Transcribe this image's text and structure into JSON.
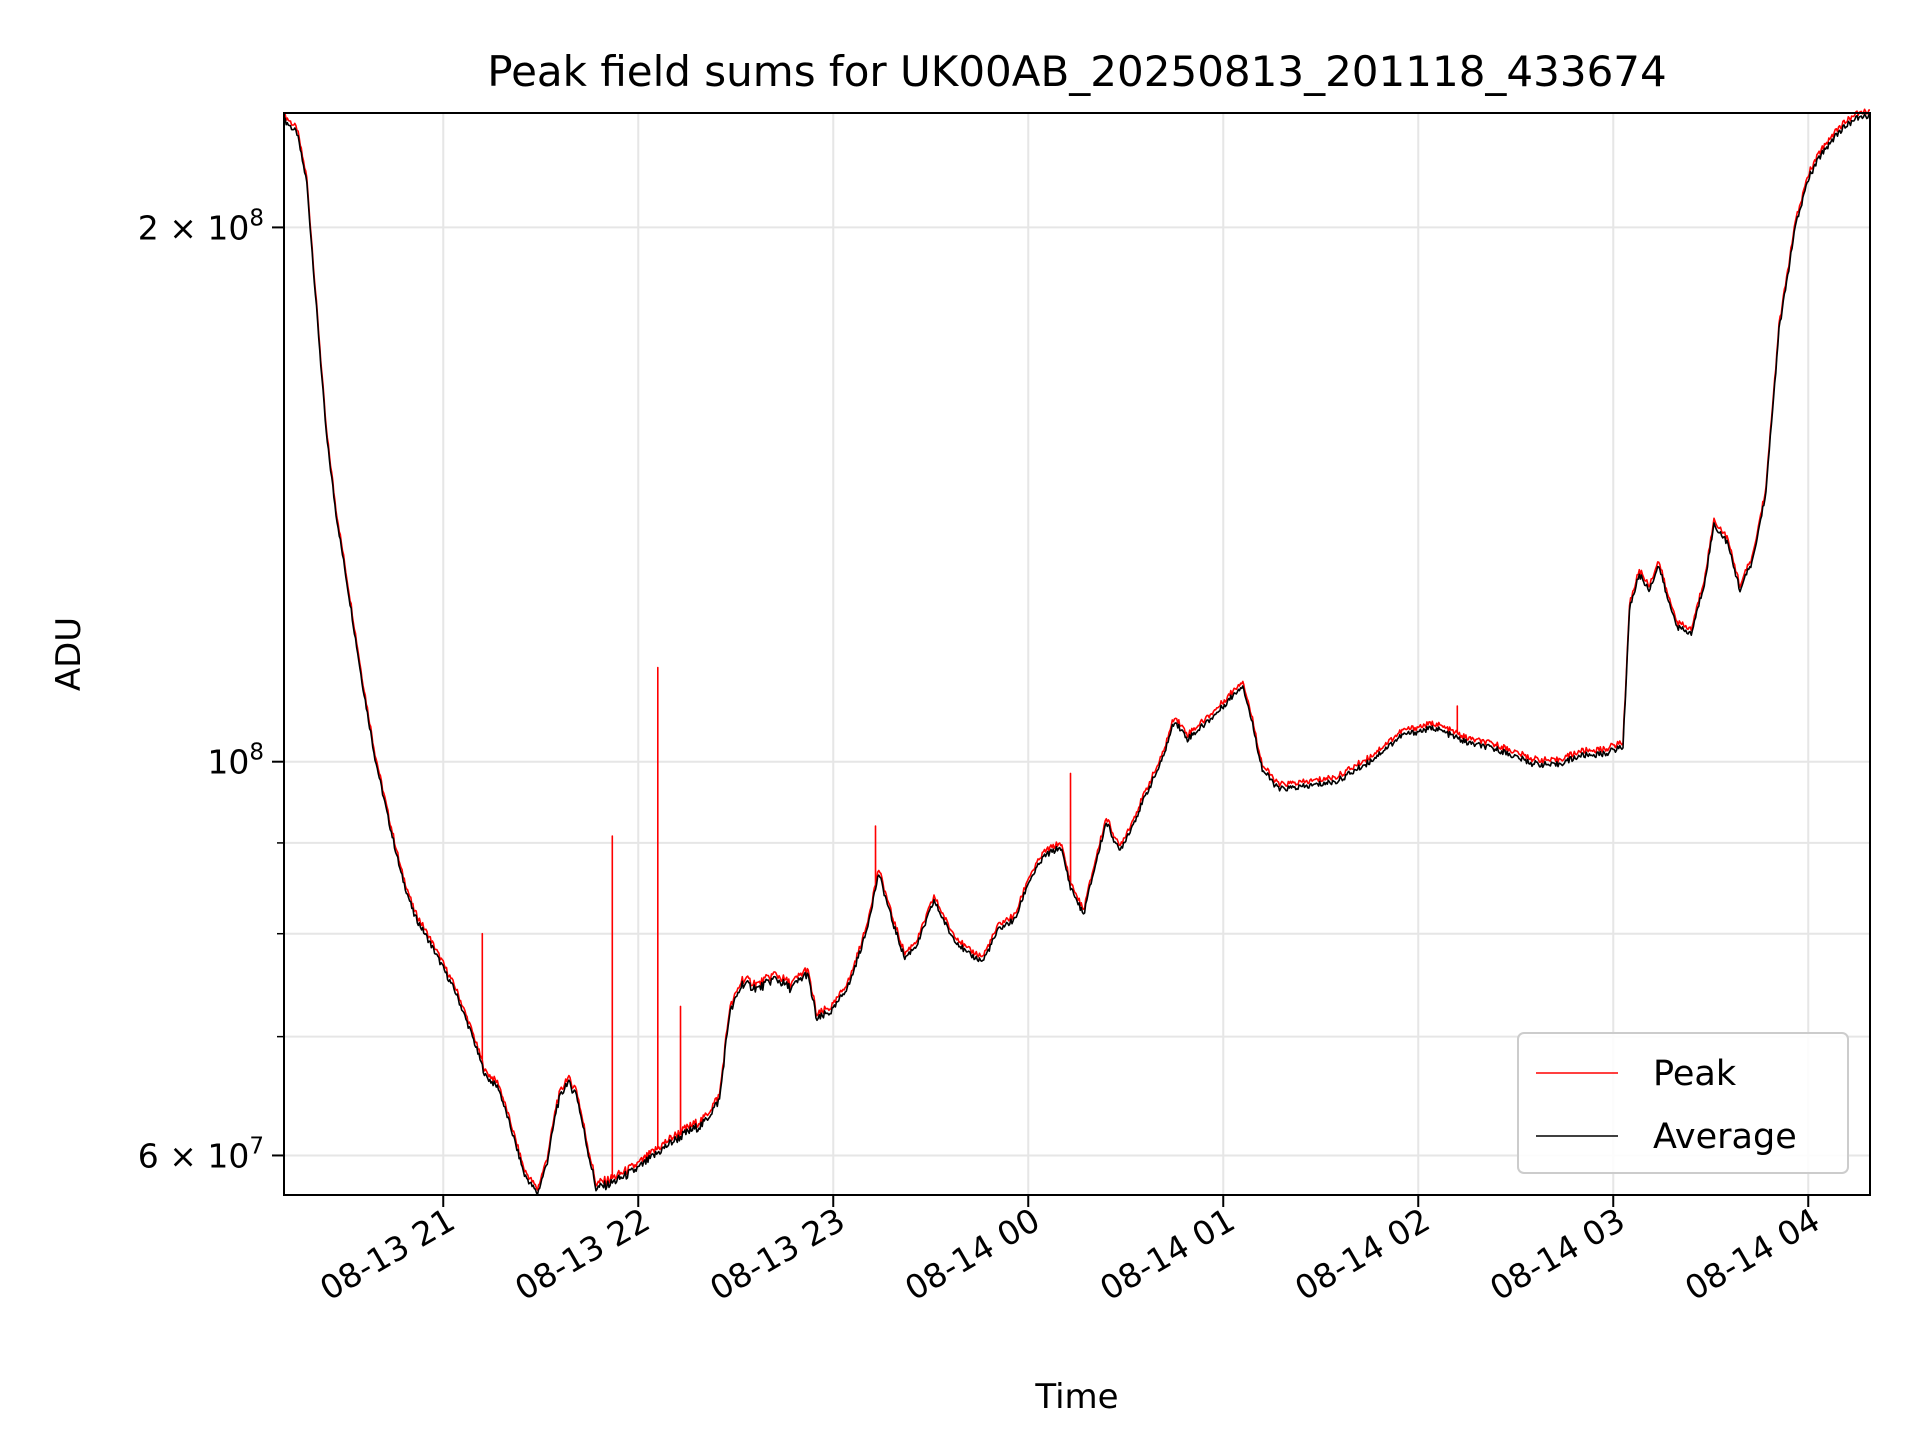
{
  "chart_data": {
    "type": "line",
    "title": "Peak field sums for UK00AB_20250813_201118_433674",
    "xlabel": "Time",
    "ylabel": "ADU",
    "y_scale": "log",
    "ylim": [
      57000000,
      232000000
    ],
    "xlim": [
      "2025-08-13 20:11",
      "2025-08-14 04:19"
    ],
    "x_ticks": [
      "2025-08-13 21:00",
      "2025-08-13 22:00",
      "2025-08-13 23:00",
      "2025-08-14 00:00",
      "2025-08-14 01:00",
      "2025-08-14 02:00",
      "2025-08-14 03:00",
      "2025-08-14 04:00"
    ],
    "x_tick_labels": [
      "08-13 21",
      "08-13 22",
      "08-13 23",
      "08-14 00",
      "08-14 01",
      "08-14 02",
      "08-14 03",
      "08-14 04"
    ],
    "y_major_ticks": [
      {
        "value": 200000000,
        "mantissa": "2",
        "exp": "8"
      },
      {
        "value": 100000000,
        "mantissa": "",
        "exp": "8"
      },
      {
        "value": 60000000,
        "mantissa": "6",
        "exp": "7"
      }
    ],
    "y_minor_ticks": [
      70000000,
      80000000,
      90000000
    ],
    "grid": true,
    "legend": {
      "position": "lower right",
      "entries": [
        "Peak",
        "Average"
      ]
    },
    "colors": {
      "Peak": "#ff0000",
      "Average": "#000000"
    },
    "series": [
      {
        "name": "Average",
        "points": [
          [
            "2025-08-13 20:11",
            230000000
          ],
          [
            "2025-08-13 20:15",
            226000000
          ],
          [
            "2025-08-13 20:18",
            212000000
          ],
          [
            "2025-08-13 20:21",
            180000000
          ],
          [
            "2025-08-13 20:24",
            153000000
          ],
          [
            "2025-08-13 20:27",
            138000000
          ],
          [
            "2025-08-13 20:31",
            124000000
          ],
          [
            "2025-08-13 20:35",
            111000000
          ],
          [
            "2025-08-13 20:39",
            100500000
          ],
          [
            "2025-08-13 20:43",
            93000000
          ],
          [
            "2025-08-13 20:47",
            86500000
          ],
          [
            "2025-08-13 20:51",
            82000000
          ],
          [
            "2025-08-13 20:56",
            79000000
          ],
          [
            "2025-08-13 21:00",
            76500000
          ],
          [
            "2025-08-13 21:04",
            74000000
          ],
          [
            "2025-08-13 21:09",
            70000000
          ],
          [
            "2025-08-13 21:13",
            66500000
          ],
          [
            "2025-08-13 21:17",
            65500000
          ],
          [
            "2025-08-13 21:21",
            62000000
          ],
          [
            "2025-08-13 21:25",
            58500000
          ],
          [
            "2025-08-13 21:29",
            57100000
          ],
          [
            "2025-08-13 21:32",
            59500000
          ],
          [
            "2025-08-13 21:35",
            64000000
          ],
          [
            "2025-08-13 21:38",
            66000000
          ],
          [
            "2025-08-13 21:41",
            65000000
          ],
          [
            "2025-08-13 21:44",
            61000000
          ],
          [
            "2025-08-13 21:47",
            57500000
          ],
          [
            "2025-08-13 21:51",
            57800000
          ],
          [
            "2025-08-13 21:55",
            58300000
          ],
          [
            "2025-08-13 22:00",
            59000000
          ],
          [
            "2025-08-13 22:05",
            60000000
          ],
          [
            "2025-08-13 22:10",
            61000000
          ],
          [
            "2025-08-13 22:15",
            61800000
          ],
          [
            "2025-08-13 22:20",
            62500000
          ],
          [
            "2025-08-13 22:25",
            64500000
          ],
          [
            "2025-08-13 22:28",
            72000000
          ],
          [
            "2025-08-13 22:32",
            75000000
          ],
          [
            "2025-08-13 22:37",
            74500000
          ],
          [
            "2025-08-13 22:42",
            75500000
          ],
          [
            "2025-08-13 22:47",
            74500000
          ],
          [
            "2025-08-13 22:52",
            76000000
          ],
          [
            "2025-08-13 22:55",
            71500000
          ],
          [
            "2025-08-13 23:00",
            72500000
          ],
          [
            "2025-08-13 23:05",
            75000000
          ],
          [
            "2025-08-13 23:10",
            80000000
          ],
          [
            "2025-08-13 23:14",
            86500000
          ],
          [
            "2025-08-13 23:18",
            81500000
          ],
          [
            "2025-08-13 23:22",
            77500000
          ],
          [
            "2025-08-13 23:26",
            79000000
          ],
          [
            "2025-08-13 23:31",
            83500000
          ],
          [
            "2025-08-13 23:36",
            80000000
          ],
          [
            "2025-08-13 23:41",
            78000000
          ],
          [
            "2025-08-13 23:46",
            77200000
          ],
          [
            "2025-08-13 23:51",
            80500000
          ],
          [
            "2025-08-13 23:56",
            81500000
          ],
          [
            "2025-08-14 00:00",
            85500000
          ],
          [
            "2025-08-14 00:05",
            88500000
          ],
          [
            "2025-08-14 00:10",
            89500000
          ],
          [
            "2025-08-14 00:13",
            85000000
          ],
          [
            "2025-08-14 00:17",
            82000000
          ],
          [
            "2025-08-14 00:20",
            86500000
          ],
          [
            "2025-08-14 00:24",
            92500000
          ],
          [
            "2025-08-14 00:28",
            89000000
          ],
          [
            "2025-08-14 00:32",
            92000000
          ],
          [
            "2025-08-14 00:37",
            96500000
          ],
          [
            "2025-08-14 00:41",
            100000000
          ],
          [
            "2025-08-14 00:45",
            105500000
          ],
          [
            "2025-08-14 00:49",
            103000000
          ],
          [
            "2025-08-14 00:53",
            104500000
          ],
          [
            "2025-08-14 00:58",
            106500000
          ],
          [
            "2025-08-14 01:02",
            108500000
          ],
          [
            "2025-08-14 01:06",
            110500000
          ],
          [
            "2025-08-14 01:09",
            105000000
          ],
          [
            "2025-08-14 01:12",
            99000000
          ],
          [
            "2025-08-14 01:17",
            96500000
          ],
          [
            "2025-08-14 01:25",
            96800000
          ],
          [
            "2025-08-14 01:35",
            97500000
          ],
          [
            "2025-08-14 01:45",
            100000000
          ],
          [
            "2025-08-14 01:55",
            103500000
          ],
          [
            "2025-08-14 02:05",
            104500000
          ],
          [
            "2025-08-14 02:15",
            102500000
          ],
          [
            "2025-08-14 02:25",
            101500000
          ],
          [
            "2025-08-14 02:35",
            99800000
          ],
          [
            "2025-08-14 02:42",
            99500000
          ],
          [
            "2025-08-14 02:50",
            100800000
          ],
          [
            "2025-08-14 02:57",
            101000000
          ],
          [
            "2025-08-14 03:03",
            102000000
          ],
          [
            "2025-08-14 03:05",
            122000000
          ],
          [
            "2025-08-14 03:08",
            127500000
          ],
          [
            "2025-08-14 03:11",
            125000000
          ],
          [
            "2025-08-14 03:14",
            129000000
          ],
          [
            "2025-08-14 03:17",
            123000000
          ],
          [
            "2025-08-14 03:20",
            119000000
          ],
          [
            "2025-08-14 03:24",
            118000000
          ],
          [
            "2025-08-14 03:28",
            126000000
          ],
          [
            "2025-08-14 03:31",
            136000000
          ],
          [
            "2025-08-14 03:35",
            133000000
          ],
          [
            "2025-08-14 03:39",
            125000000
          ],
          [
            "2025-08-14 03:43",
            130000000
          ],
          [
            "2025-08-14 03:47",
            142000000
          ],
          [
            "2025-08-14 03:51",
            175000000
          ],
          [
            "2025-08-14 03:56",
            200000000
          ],
          [
            "2025-08-14 04:00",
            213000000
          ],
          [
            "2025-08-14 04:04",
            220000000
          ],
          [
            "2025-08-14 04:09",
            226000000
          ],
          [
            "2025-08-14 04:14",
            230000000
          ],
          [
            "2025-08-14 04:19",
            231500000
          ]
        ]
      },
      {
        "name": "Peak",
        "note_spikes": true,
        "spikes": [
          [
            "2025-08-13 21:12",
            80000000
          ],
          [
            "2025-08-13 21:52",
            90800000
          ],
          [
            "2025-08-13 22:06",
            113000000
          ],
          [
            "2025-08-13 22:13",
            72800000
          ],
          [
            "2025-08-13 23:13",
            92000000
          ],
          [
            "2025-08-14 00:13",
            98500000
          ],
          [
            "2025-08-14 02:12",
            107500000
          ]
        ],
        "offset_ratio": 1.006
      }
    ]
  }
}
